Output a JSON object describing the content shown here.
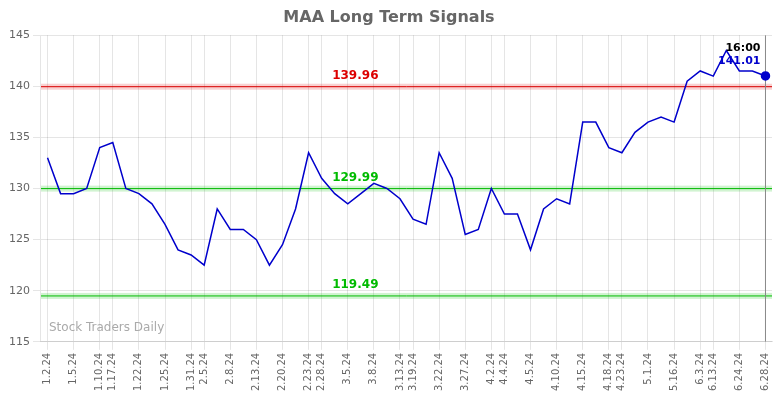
{
  "chart_data": {
    "type": "line",
    "title": "MAA Long Term Signals",
    "categories": [
      "1.2.24",
      null,
      "1.5.24",
      null,
      "1.10.24",
      "1.17.24",
      null,
      "1.22.24",
      null,
      "1.25.24",
      null,
      "1.31.24",
      "2.5.24",
      null,
      "2.8.24",
      null,
      "2.13.24",
      null,
      "2.20.24",
      null,
      "2.23.24",
      "2.28.24",
      null,
      "3.5.24",
      null,
      "3.8.24",
      null,
      "3.13.24",
      "3.19.24",
      null,
      "3.22.24",
      null,
      "3.27.24",
      null,
      "4.2.24",
      "4.4.24",
      null,
      "4.5.24",
      null,
      "4.10.24",
      null,
      "4.15.24",
      null,
      "4.18.24",
      "4.23.24",
      null,
      "5.1.24",
      null,
      "5.16.24",
      null,
      "6.3.24",
      "6.13.24",
      null,
      "6.24.24",
      null,
      "6.28.24"
    ],
    "values": [
      133.0,
      129.5,
      129.5,
      130.0,
      134.0,
      134.5,
      130.0,
      129.5,
      128.5,
      126.5,
      124.0,
      123.5,
      122.5,
      128.0,
      126.0,
      126.0,
      125.0,
      122.5,
      124.5,
      128.0,
      133.5,
      131.0,
      129.5,
      128.5,
      129.5,
      130.5,
      130.0,
      129.0,
      127.0,
      126.5,
      133.5,
      131.0,
      125.5,
      126.0,
      130.0,
      127.5,
      127.5,
      124.0,
      128.0,
      129.0,
      128.5,
      136.5,
      136.5,
      134.0,
      133.5,
      135.5,
      136.5,
      137.0,
      136.5,
      140.5,
      141.5,
      141.0,
      143.5,
      141.5,
      141.5,
      141.01
    ],
    "color": "#0000cc",
    "hlines": [
      {
        "value": 139.96,
        "color": "#dd0000"
      },
      {
        "value": 129.99,
        "color": "#00bb00"
      },
      {
        "value": 119.49,
        "color": "#00bb00"
      }
    ],
    "annotations": [
      {
        "text": "16:00",
        "color": "#000000"
      },
      {
        "text": "141.01",
        "color": "#0000cc"
      }
    ],
    "watermark": "Stock Traders Daily",
    "ylim": [
      115,
      145
    ],
    "yticks": [
      115,
      120,
      125,
      130,
      135,
      140,
      145
    ],
    "grid": true
  }
}
